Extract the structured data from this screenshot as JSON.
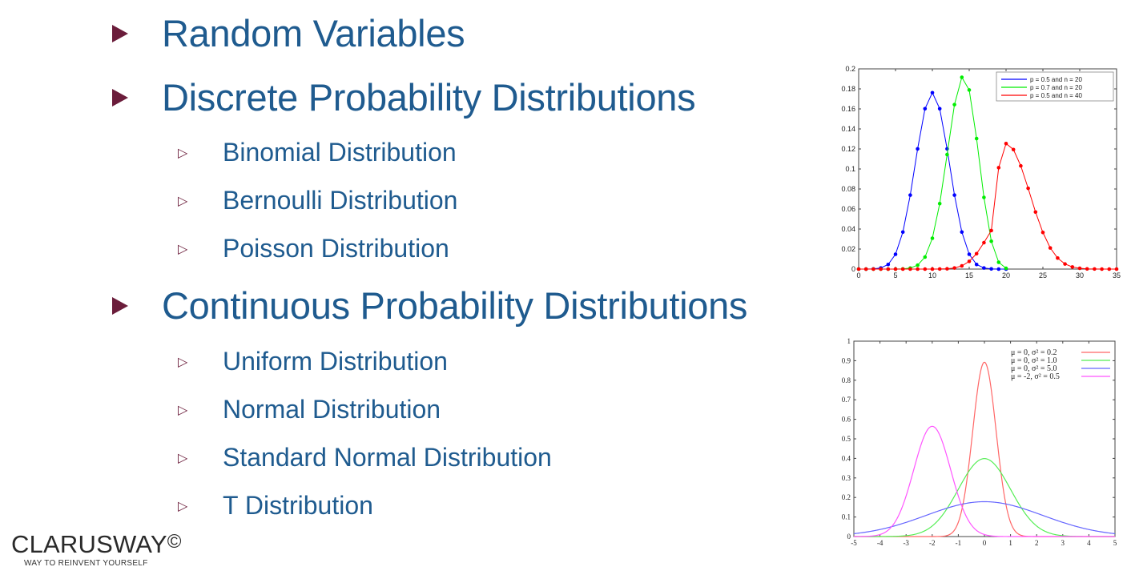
{
  "slide": {
    "items": [
      {
        "label": "Random Variables",
        "sub": []
      },
      {
        "label": "Discrete Probability Distributions",
        "sub": [
          "Binomial Distribution",
          "Bernoulli Distribution",
          "Poisson Distribution"
        ]
      },
      {
        "label": "Continuous Probability Distributions",
        "sub": [
          "Uniform Distribution",
          "Normal Distribution",
          "Standard Normal Distribution",
          "T Distribution"
        ]
      }
    ]
  },
  "logo": {
    "name": "CLARUSWAY",
    "mark": "©",
    "tagline": "WAY TO REINVENT YOURSELF"
  },
  "colors": {
    "text": "#1f5b8f",
    "bullet": "#6b1d3b"
  },
  "chart_data": [
    {
      "type": "line",
      "title": "",
      "xlabel": "",
      "ylabel": "",
      "xlim": [
        0,
        35
      ],
      "ylim": [
        0,
        0.2
      ],
      "xticks": [
        0,
        5,
        10,
        15,
        20,
        25,
        30,
        35
      ],
      "yticks": [
        0,
        0.02,
        0.04,
        0.06,
        0.08,
        0.1,
        0.12,
        0.14,
        0.16,
        0.18,
        0.2
      ],
      "legend_position": "top-right",
      "series": [
        {
          "name": "p = 0.5 and n = 20",
          "color": "#0000ff",
          "x": [
            0,
            1,
            2,
            3,
            4,
            5,
            6,
            7,
            8,
            9,
            10,
            11,
            12,
            13,
            14,
            15,
            16,
            17,
            18,
            19,
            20
          ],
          "y": [
            0,
            0,
            0.0002,
            0.0011,
            0.0046,
            0.0148,
            0.037,
            0.0739,
            0.1201,
            0.1602,
            0.1762,
            0.1602,
            0.1201,
            0.0739,
            0.037,
            0.0148,
            0.0046,
            0.0011,
            0.0002,
            0,
            0
          ]
        },
        {
          "name": "p = 0.7 and n = 20",
          "color": "#00ee00",
          "x": [
            0,
            1,
            2,
            3,
            4,
            5,
            6,
            7,
            8,
            9,
            10,
            11,
            12,
            13,
            14,
            15,
            16,
            17,
            18,
            19,
            20
          ],
          "y": [
            0,
            0,
            0,
            0,
            0,
            0,
            0.0002,
            0.001,
            0.0039,
            0.012,
            0.0308,
            0.0654,
            0.1144,
            0.1643,
            0.1916,
            0.1789,
            0.1304,
            0.0716,
            0.0278,
            0.0068,
            0.0008
          ]
        },
        {
          "name": "p = 0.5 and n = 40",
          "color": "#ff0000",
          "x": [
            0,
            1,
            2,
            3,
            4,
            5,
            6,
            7,
            8,
            9,
            10,
            11,
            12,
            13,
            14,
            15,
            16,
            17,
            18,
            19,
            20,
            21,
            22,
            23,
            24,
            25,
            26,
            27,
            28,
            29,
            30,
            31,
            32,
            33,
            34,
            35
          ],
          "y": [
            0,
            0,
            0,
            0,
            0,
            0,
            0,
            0,
            0,
            0,
            0,
            0.0001,
            0.0003,
            0.0011,
            0.0032,
            0.0077,
            0.0154,
            0.0264,
            0.0385,
            0.1013,
            0.1254,
            0.1194,
            0.1031,
            0.0807,
            0.057,
            0.0366,
            0.0211,
            0.011,
            0.0051,
            0.0021,
            0.0008,
            0.0002,
            0.0001,
            0,
            0,
            0
          ]
        }
      ]
    },
    {
      "type": "line",
      "title": "",
      "xlabel": "",
      "ylabel": "",
      "xlim": [
        -5,
        5
      ],
      "ylim": [
        0,
        1
      ],
      "xticks": [
        -5,
        -4,
        -3,
        -2,
        -1,
        0,
        1,
        2,
        3,
        4,
        5
      ],
      "yticks": [
        0,
        0.1,
        0.2,
        0.3,
        0.4,
        0.5,
        0.6,
        0.7,
        0.8,
        0.9,
        1
      ],
      "legend_position": "top-right",
      "series": [
        {
          "name": "μ = 0, σ² = 0.2",
          "mu": 0,
          "var": 0.2,
          "color": "#ff6666"
        },
        {
          "name": "μ = 0, σ² = 1.0",
          "mu": 0,
          "var": 1.0,
          "color": "#55ee55"
        },
        {
          "name": "μ = 0, σ² = 5.0",
          "mu": 0,
          "var": 5.0,
          "color": "#6666ff"
        },
        {
          "name": "μ = -2, σ² = 0.5",
          "mu": -2,
          "var": 0.5,
          "color": "#ff55ff"
        }
      ]
    }
  ]
}
